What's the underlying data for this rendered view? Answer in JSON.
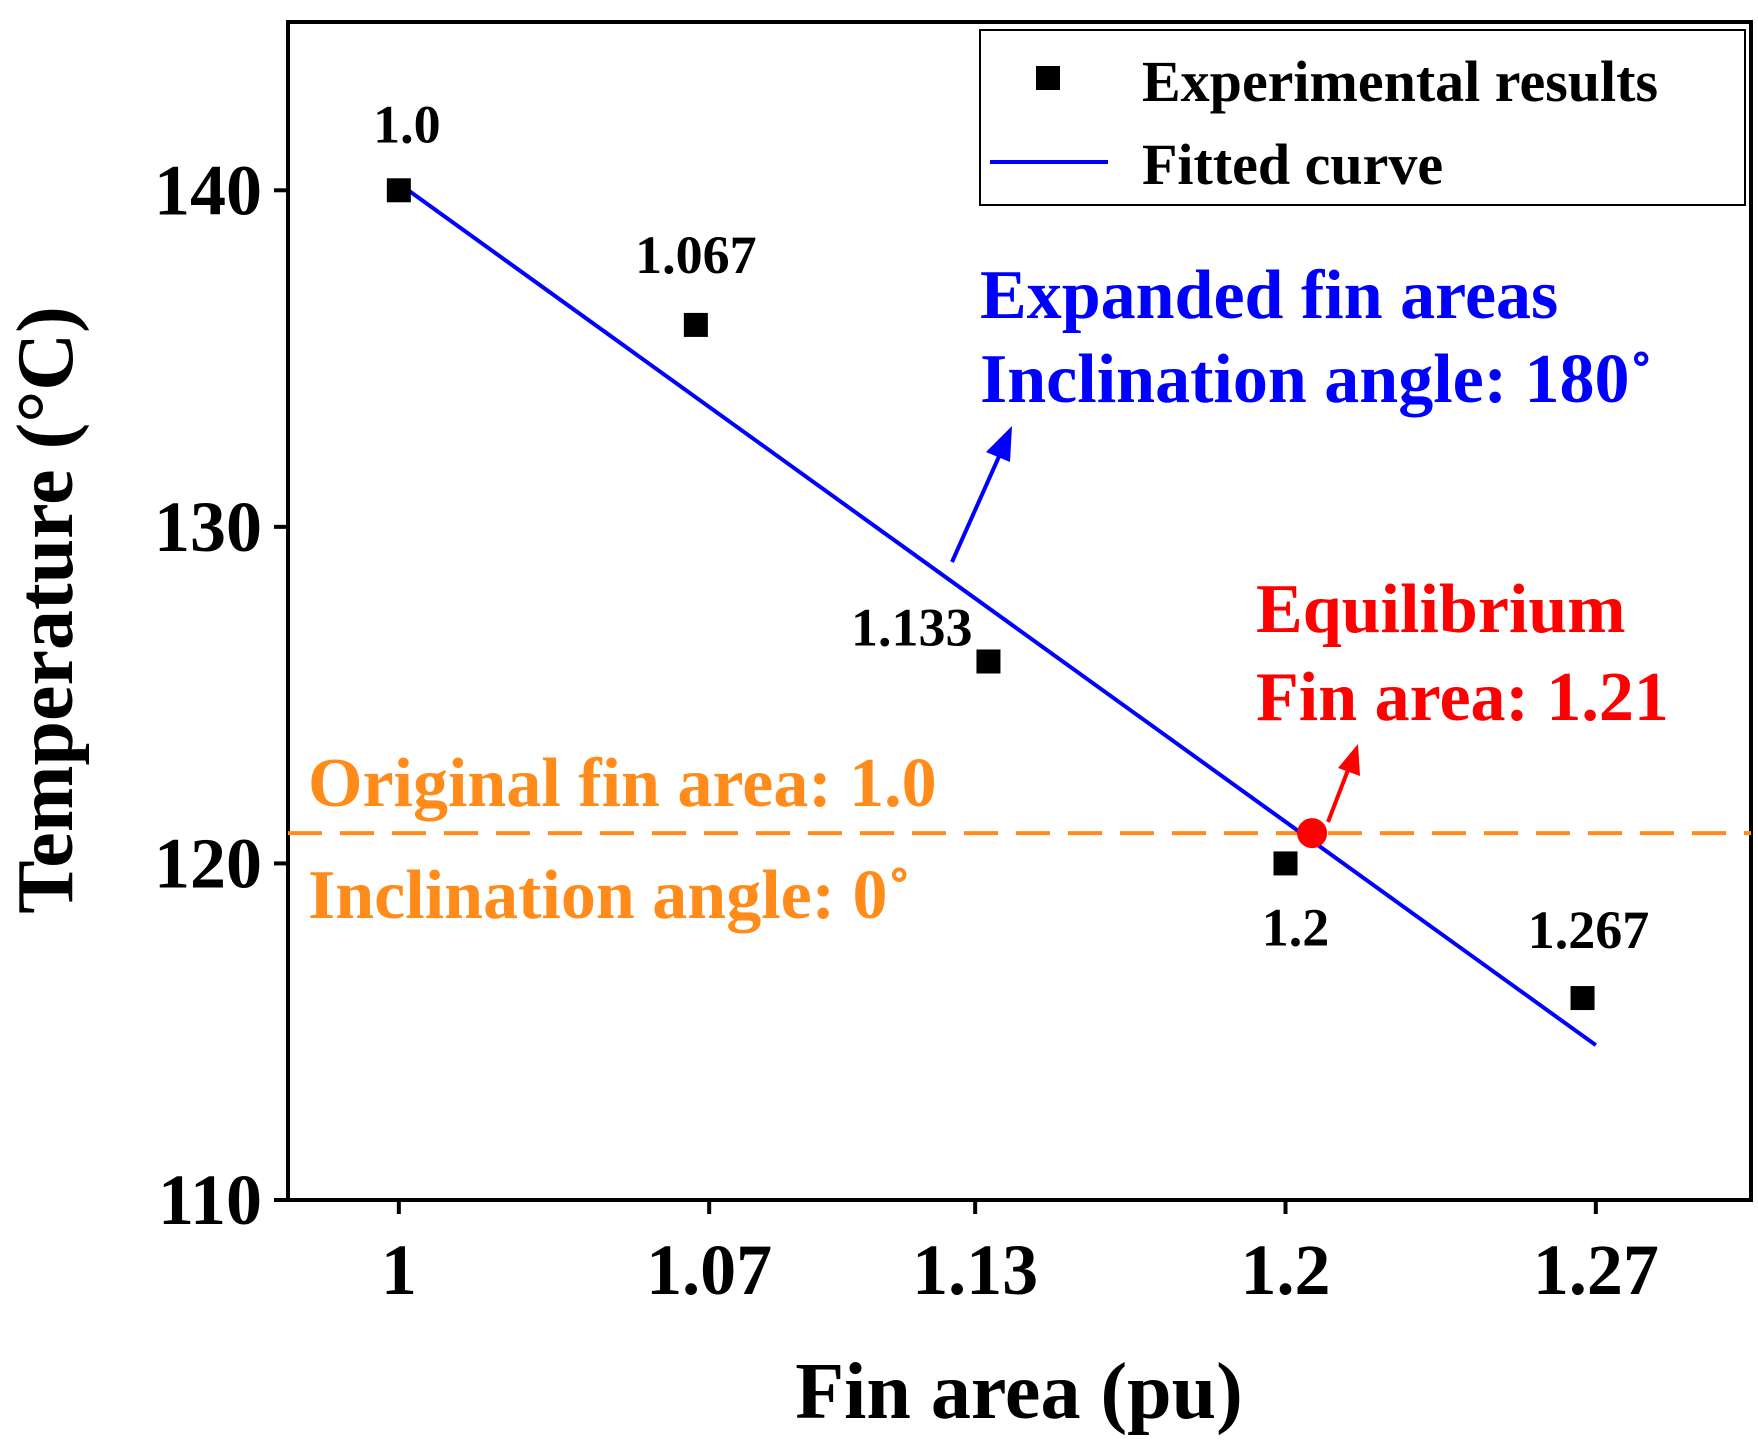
{
  "chart_data": {
    "type": "scatter",
    "xlabel": "Fin area (pu)",
    "ylabel": "Temperature (°C)",
    "xlim": [
      0.975,
      1.305
    ],
    "ylim": [
      110,
      145
    ],
    "x_ticks": [
      1,
      1.07,
      1.13,
      1.2,
      1.27
    ],
    "x_tick_labels": [
      "1",
      "1.07",
      "1.13",
      "1.2",
      "1.27"
    ],
    "y_ticks": [
      110,
      120,
      130,
      140
    ],
    "y_tick_labels": [
      "110",
      "120",
      "130",
      "140"
    ],
    "series": [
      {
        "name": "Experimental results",
        "kind": "points",
        "color": "#000000",
        "x": [
          1.0,
          1.067,
          1.133,
          1.2,
          1.267
        ],
        "y": [
          140,
          136,
          126,
          120,
          116
        ],
        "labels": [
          "1.0",
          "1.067",
          "1.133",
          "1.2",
          "1.267"
        ]
      },
      {
        "name": "Fitted curve",
        "kind": "line",
        "color": "#0000ff",
        "x": [
          1.0,
          1.27
        ],
        "y": [
          140.2,
          114.6
        ]
      }
    ],
    "reference_line": {
      "y": 120.9,
      "color": "#ff8c1a",
      "style": "dashed"
    },
    "equilibrium_point": {
      "x": 1.206,
      "y": 120.9,
      "color": "#ff0000"
    },
    "annotations": {
      "original": {
        "line1": "Original fin area: 1.0",
        "line2": "Inclination angle: 0˚",
        "color": "#ff8c1a"
      },
      "expanded": {
        "line1": "Expanded fin areas",
        "line2": "Inclination angle: 180˚",
        "color": "#0000ff"
      },
      "equilibrium": {
        "line1": "Equilibrium",
        "line2": "Fin area: 1.21",
        "color": "#ff0000"
      }
    },
    "legend": {
      "placement": "top-right",
      "entries": [
        "Experimental results",
        "Fitted curve"
      ]
    },
    "grid": false
  }
}
